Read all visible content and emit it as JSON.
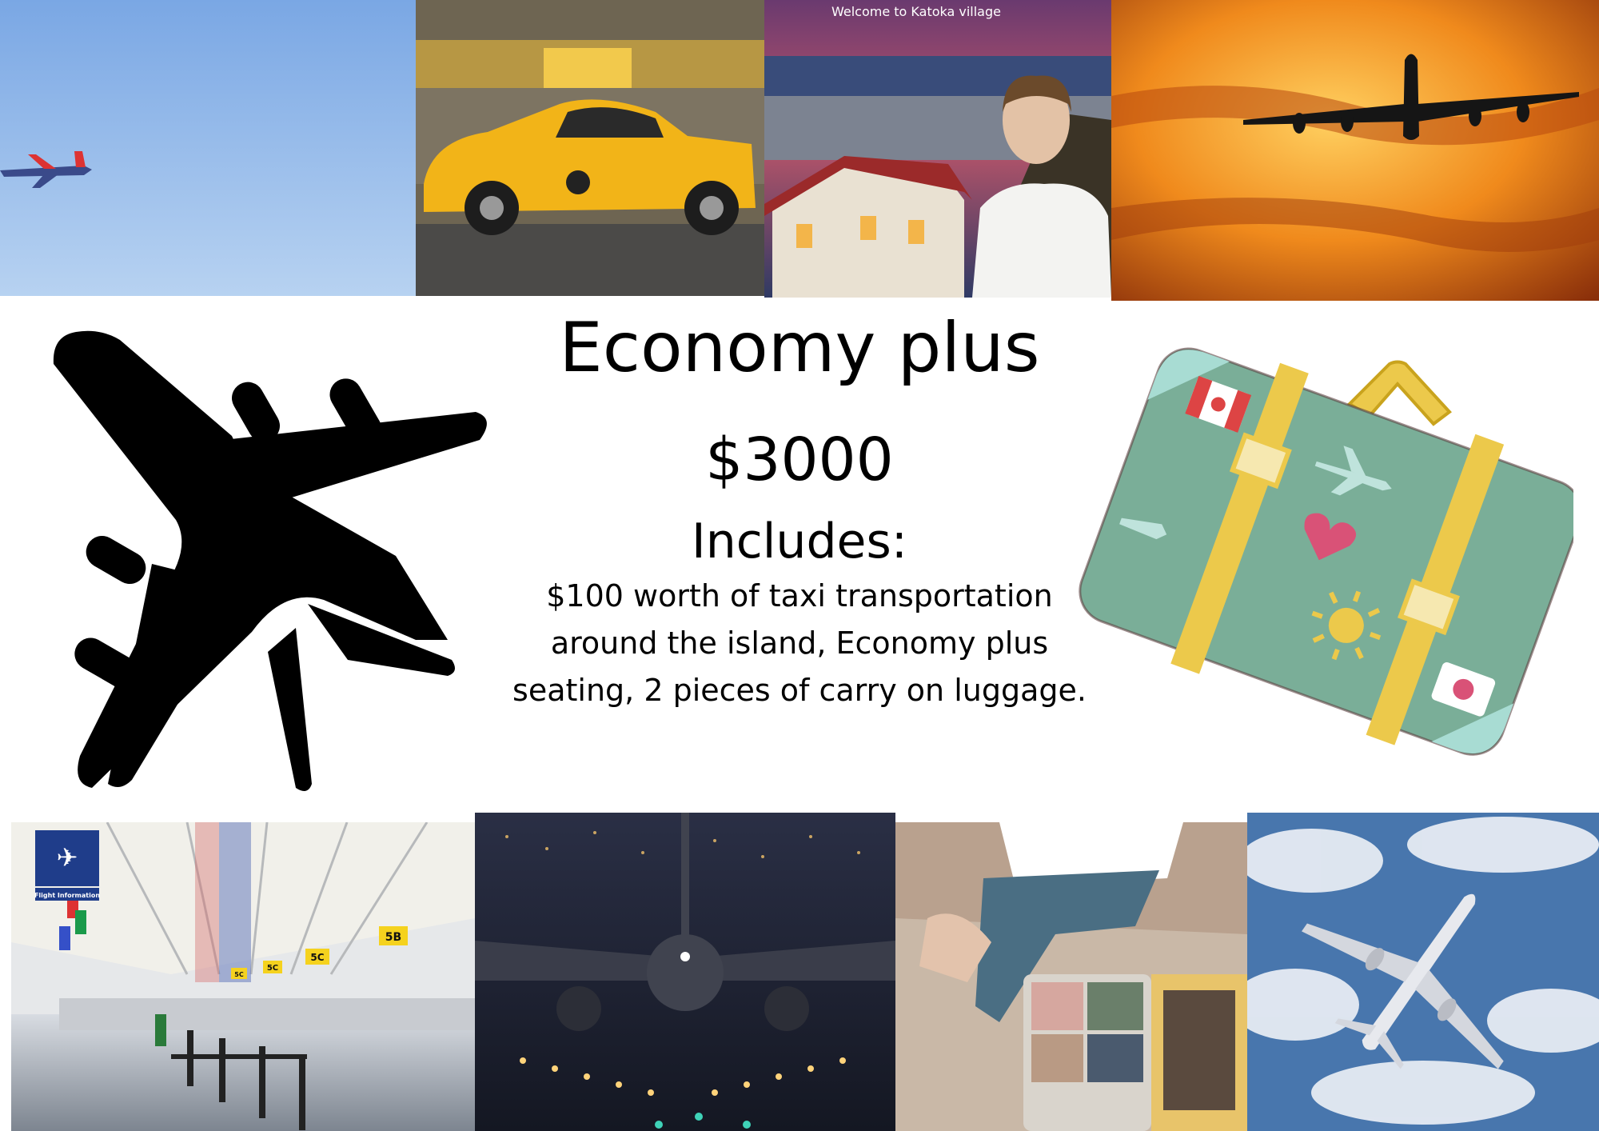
{
  "heading": {
    "title": "Economy plus",
    "price": "$3000",
    "includes_label": "Includes:",
    "description": "$100 worth of taxi transportation around the island, Economy plus seating, 2 pieces of carry on luggage."
  },
  "photo_captions": {
    "village_banner": "Welcome to Katoka village"
  },
  "airport_signs": {
    "flight_information": "Flight Information",
    "gate_5b": "5B",
    "gate_5c_a": "5C",
    "gate_5c_b": "5C",
    "gate_5c_c": "5C"
  },
  "colors": {
    "background": "#ffffff",
    "text": "#000000",
    "suitcase_body": "#7aae98",
    "suitcase_straps": "#ecc94b",
    "sunset_orange": "#e8740f"
  }
}
